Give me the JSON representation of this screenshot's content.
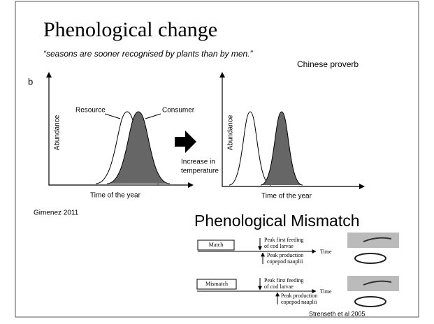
{
  "slide": {
    "title": "Phenological change",
    "quote": "“seasons are sooner recognised by plants than by men.”",
    "attribution": "Chinese proverb",
    "panel_label": "b",
    "left_graph": {
      "resource": "Resource",
      "consumer": "Consumer",
      "y_label": "Abundance",
      "x_label": "Time of the year"
    },
    "arrow_text": [
      "Increase in",
      "temperature"
    ],
    "right_graph": {
      "y_label": "Abundance",
      "x_label": "Time of the year"
    },
    "source_left": "Gimenez 2011",
    "subtitle": "Phenological Mismatch",
    "match": {
      "label": "Match",
      "larvae": [
        "Peak first feeding",
        "of cod larvae"
      ],
      "nauplii": [
        "Peak  production",
        "copepod nauplii"
      ],
      "time": "Time"
    },
    "mismatch": {
      "label": "Mismatch",
      "larvae": [
        "Peak first feeding",
        "of cod larvae"
      ],
      "nauplii": [
        "Peak production",
        "copepod nauplii"
      ],
      "time": "Time"
    },
    "source_right": "Strenseth et al 2005"
  }
}
